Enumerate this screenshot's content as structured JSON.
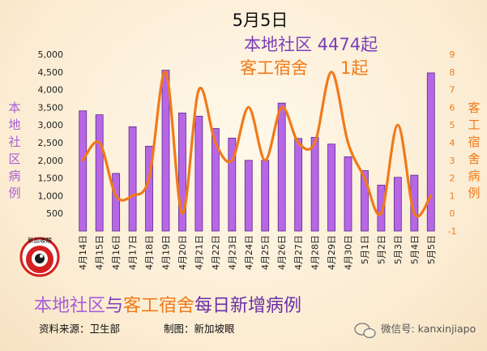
{
  "header": {
    "date": "5月5日",
    "community_line": "本地社区 4474起",
    "dorm_label": "客工宿舍",
    "dorm_count": "1起"
  },
  "footer": {
    "title_part1": "本地社区",
    "title_link": "与",
    "title_part2": "客工宿舍",
    "title_part3": "每日新增病例",
    "source": "资料来源：卫生部",
    "credit": "制图：新加坡眼",
    "watermark": "微信号: kanxinjiapo",
    "logo_text": "新加坡眼"
  },
  "colors": {
    "bar": "#b767e6",
    "bar_edge": "#5a2a8a",
    "line": "#f07a1a",
    "community_text": "#7b3fb8",
    "dorm_text": "#f07a1a"
  },
  "chart_data": {
    "type": "bar+line",
    "categories": [
      "4月14日",
      "4月15日",
      "4月16日",
      "4月17日",
      "4月18日",
      "4月19日",
      "4月20日",
      "4月21日",
      "4月22日",
      "4月23日",
      "4月24日",
      "4月25日",
      "4月26日",
      "4月27日",
      "4月28日",
      "4月29日",
      "4月30日",
      "5月1日",
      "5月2日",
      "5月3日",
      "5月4日",
      "5月5日"
    ],
    "series": [
      {
        "name": "本地社区",
        "axis": "left",
        "type": "bar",
        "values": [
          3400,
          3290,
          1630,
          2950,
          2400,
          4550,
          3340,
          3250,
          2900,
          2630,
          2000,
          2000,
          3620,
          2620,
          2650,
          2460,
          2100,
          1710,
          1300,
          1520,
          1580,
          4474
        ]
      },
      {
        "name": "客工宿舍",
        "axis": "right",
        "type": "line",
        "values": [
          3,
          4,
          1,
          1,
          2,
          8,
          0,
          7,
          4,
          3,
          6,
          3,
          6,
          4,
          4,
          8,
          4,
          2,
          0,
          5,
          0,
          1
        ]
      }
    ],
    "ylabel_left": "本地社区病例",
    "ylabel_right": "客工宿舍病例",
    "ylim_left": [
      0,
      5000
    ],
    "yticks_left": [
      "500",
      "1,000",
      "1,500",
      "2,000",
      "2,500",
      "3,000",
      "3,500",
      "4,000",
      "4,500",
      "5,000"
    ],
    "ylim_right": [
      -1,
      9
    ],
    "yticks_right": [
      "-1",
      "0",
      "1",
      "2",
      "3",
      "4",
      "5",
      "6",
      "7",
      "8",
      "9"
    ],
    "grid": false
  }
}
